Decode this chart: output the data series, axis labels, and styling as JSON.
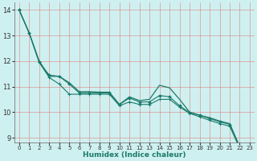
{
  "xlabel": "Humidex (Indice chaleur)",
  "ylabel": "",
  "bg_color": "#cff0f0",
  "grid_color_v": "#e89898",
  "grid_color_h": "#e89898",
  "line_color": "#1a7a6a",
  "xlim": [
    -0.5,
    23.5
  ],
  "ylim": [
    8.8,
    14.3
  ],
  "yticks": [
    9,
    10,
    11,
    12,
    13,
    14
  ],
  "xticks": [
    0,
    1,
    2,
    3,
    4,
    5,
    6,
    7,
    8,
    9,
    10,
    11,
    12,
    13,
    14,
    15,
    16,
    17,
    18,
    19,
    20,
    21,
    22,
    23
  ],
  "line1_x": [
    0,
    1,
    2,
    3,
    4,
    5,
    6,
    7,
    8,
    9,
    10,
    11,
    12,
    13,
    14,
    15,
    16,
    17,
    18,
    19,
    20,
    21,
    22,
    23
  ],
  "line1_y": [
    14.0,
    13.1,
    12.0,
    11.4,
    11.4,
    11.15,
    10.8,
    10.8,
    10.78,
    10.78,
    10.3,
    10.6,
    10.45,
    10.5,
    11.05,
    10.95,
    10.5,
    10.0,
    9.88,
    9.78,
    9.65,
    9.55,
    8.65,
    8.6
  ],
  "line2_x": [
    0,
    1,
    2,
    3,
    4,
    5,
    6,
    7,
    8,
    9,
    10,
    11,
    12,
    13,
    14,
    15,
    16,
    17,
    18,
    19,
    20,
    21,
    22,
    23
  ],
  "line2_y": [
    14.0,
    13.1,
    11.95,
    11.45,
    11.4,
    11.1,
    10.75,
    10.75,
    10.75,
    10.75,
    10.3,
    10.55,
    10.4,
    10.4,
    10.65,
    10.6,
    10.25,
    9.98,
    9.88,
    9.75,
    9.62,
    9.52,
    8.62,
    8.58
  ],
  "line3_x": [
    0,
    1,
    2,
    3,
    4,
    5,
    6,
    7,
    8,
    9,
    10,
    11,
    12,
    13,
    14,
    15,
    16,
    17,
    18,
    19,
    20,
    21,
    22,
    23
  ],
  "line3_y": [
    14.0,
    13.1,
    11.95,
    11.35,
    11.1,
    10.7,
    10.7,
    10.7,
    10.7,
    10.7,
    10.25,
    10.4,
    10.3,
    10.3,
    10.5,
    10.5,
    10.2,
    9.95,
    9.82,
    9.68,
    9.55,
    9.45,
    8.58,
    8.55
  ]
}
